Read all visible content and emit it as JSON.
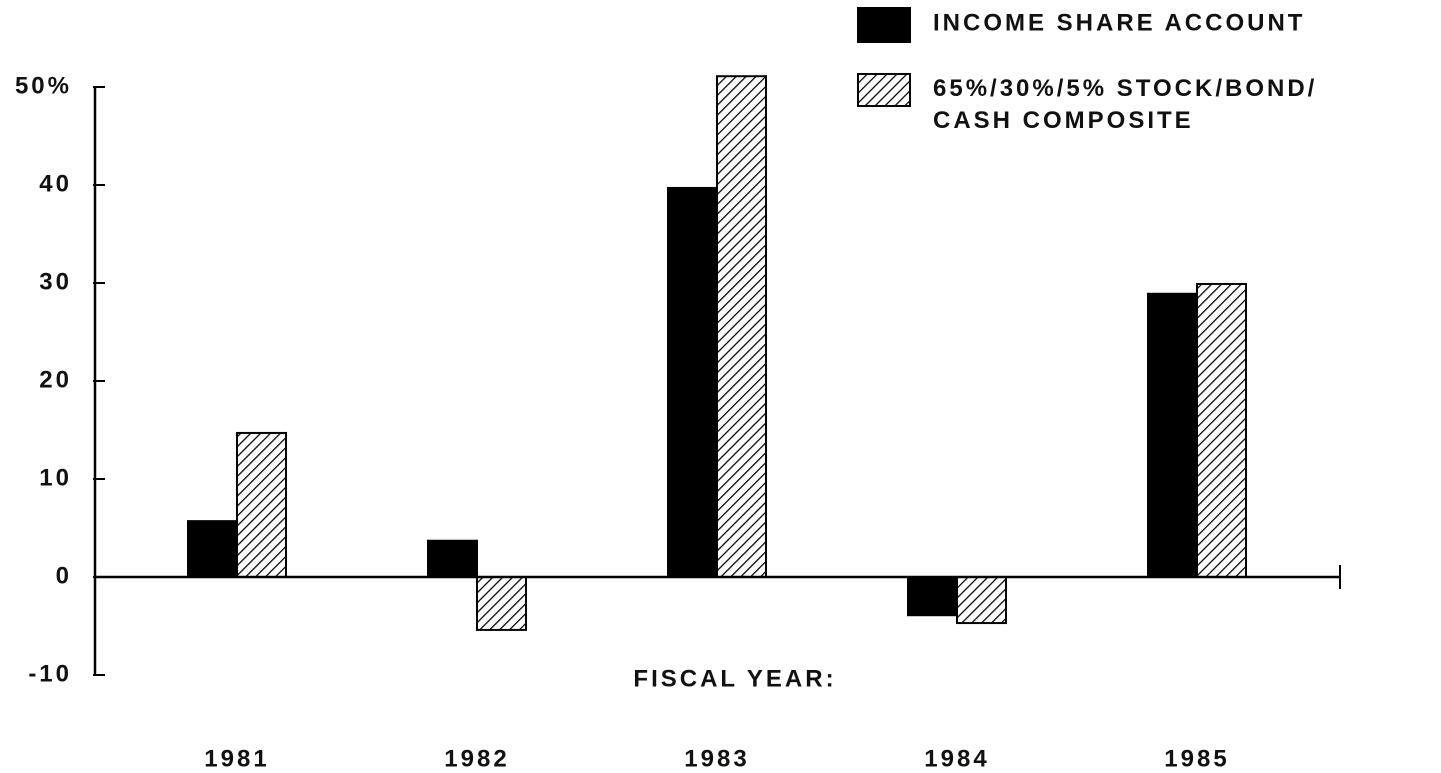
{
  "chart_data": {
    "type": "bar",
    "x_label": "FISCAL YEAR:",
    "categories": [
      "1981",
      "1982",
      "1983",
      "1984",
      "1985"
    ],
    "series": [
      {
        "name": "INCOME SHARE ACCOUNT",
        "color": "#000000",
        "fill": "solid",
        "values": [
          5.7,
          3.7,
          39.7,
          -3.9,
          28.9
        ]
      },
      {
        "name": "65%/30%/5% STOCK/BOND/ CASH COMPOSITE",
        "color": "#000000",
        "fill": "hatch",
        "values": [
          14.7,
          -5.4,
          51.1,
          -4.7,
          29.9
        ]
      }
    ],
    "ylim": [
      -10,
      50
    ],
    "yticks": [
      -10,
      0,
      10,
      20,
      30,
      40,
      {
        "value": 50,
        "label": "50%"
      }
    ],
    "grid": false,
    "legend": "top-right"
  }
}
